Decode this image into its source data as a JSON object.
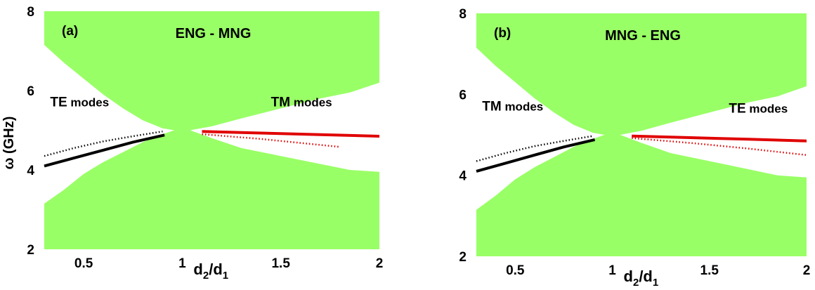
{
  "chart_data": [
    {
      "type": "area",
      "panel_label": "(a)",
      "title": "ENG - MNG",
      "xlabel": "",
      "ylabel": "ω (GHz)",
      "xlim": [
        0.3,
        2.0
      ],
      "ylim": [
        2,
        8
      ],
      "xticks": [
        "0.5",
        "1",
        "1.5",
        "2"
      ],
      "yticks": [
        "2",
        "4",
        "6",
        "8"
      ],
      "inline_x_label": {
        "main": "d",
        "sub1": "2",
        "slash": "/d",
        "sub2": "1"
      },
      "fill_color": "#99ff66",
      "gap_regions": [
        {
          "name": "left-gap",
          "upper": [
            [
              0.3,
              7.15
            ],
            [
              0.4,
              6.7
            ],
            [
              0.5,
              6.3
            ],
            [
              0.6,
              5.9
            ],
            [
              0.7,
              5.55
            ],
            [
              0.8,
              5.25
            ],
            [
              0.9,
              5.05
            ],
            [
              0.96,
              5.0
            ]
          ],
          "lower": [
            [
              0.3,
              3.15
            ],
            [
              0.4,
              3.5
            ],
            [
              0.5,
              3.9
            ],
            [
              0.6,
              4.2
            ],
            [
              0.7,
              4.45
            ],
            [
              0.8,
              4.7
            ],
            [
              0.9,
              4.9
            ],
            [
              0.96,
              5.0
            ]
          ]
        },
        {
          "name": "right-gap",
          "upper": [
            [
              1.04,
              5.0
            ],
            [
              1.15,
              5.1
            ],
            [
              1.3,
              5.3
            ],
            [
              1.5,
              5.55
            ],
            [
              1.7,
              5.8
            ],
            [
              1.85,
              5.95
            ],
            [
              2.0,
              6.2
            ]
          ],
          "lower": [
            [
              1.04,
              5.0
            ],
            [
              1.15,
              4.8
            ],
            [
              1.3,
              4.55
            ],
            [
              1.5,
              4.35
            ],
            [
              1.7,
              4.15
            ],
            [
              1.85,
              4.0
            ],
            [
              2.0,
              3.95
            ]
          ]
        }
      ],
      "region_labels": [
        {
          "strong": "TE",
          "rest": " modes",
          "x": 0.33,
          "y": 5.6
        },
        {
          "strong": "TM",
          "rest": " modes",
          "x": 1.45,
          "y": 5.6
        }
      ],
      "series": [
        {
          "color": "#000000",
          "style": "solid",
          "x": [
            0.3,
            0.45,
            0.6,
            0.75,
            0.91
          ],
          "y": [
            4.1,
            4.3,
            4.5,
            4.7,
            4.88
          ]
        },
        {
          "color": "#000000",
          "style": "dotted",
          "x": [
            0.3,
            0.45,
            0.6,
            0.75,
            0.9
          ],
          "y": [
            4.35,
            4.55,
            4.72,
            4.85,
            4.97
          ]
        },
        {
          "color": "#e00000",
          "style": "solid",
          "x": [
            1.1,
            1.4,
            1.7,
            2.0
          ],
          "y": [
            4.97,
            4.93,
            4.89,
            4.85
          ]
        },
        {
          "color": "#e00000",
          "style": "dotted",
          "x": [
            1.1,
            1.4,
            1.6,
            1.8
          ],
          "y": [
            4.9,
            4.78,
            4.68,
            4.58
          ]
        }
      ]
    },
    {
      "type": "area",
      "panel_label": "(b)",
      "title": "MNG - ENG",
      "xlabel": "",
      "ylabel": "",
      "xlim": [
        0.3,
        2.0
      ],
      "ylim": [
        2,
        8
      ],
      "xticks": [
        "0.5",
        "1",
        "1.5",
        "2"
      ],
      "yticks": [
        "2",
        "4",
        "6",
        "8"
      ],
      "inline_x_label": {
        "main": "d",
        "sub1": "2",
        "slash": "/d",
        "sub2": "1"
      },
      "fill_color": "#99ff66",
      "gap_regions": [
        {
          "name": "left-gap",
          "upper": [
            [
              0.3,
              7.15
            ],
            [
              0.4,
              6.7
            ],
            [
              0.5,
              6.3
            ],
            [
              0.6,
              5.9
            ],
            [
              0.7,
              5.55
            ],
            [
              0.8,
              5.25
            ],
            [
              0.9,
              5.05
            ],
            [
              0.96,
              5.0
            ]
          ],
          "lower": [
            [
              0.3,
              3.15
            ],
            [
              0.4,
              3.5
            ],
            [
              0.5,
              3.9
            ],
            [
              0.6,
              4.2
            ],
            [
              0.7,
              4.45
            ],
            [
              0.8,
              4.7
            ],
            [
              0.9,
              4.9
            ],
            [
              0.96,
              5.0
            ]
          ]
        },
        {
          "name": "right-gap",
          "upper": [
            [
              1.04,
              5.0
            ],
            [
              1.15,
              5.1
            ],
            [
              1.3,
              5.3
            ],
            [
              1.5,
              5.55
            ],
            [
              1.7,
              5.8
            ],
            [
              1.85,
              5.95
            ],
            [
              2.0,
              6.2
            ]
          ],
          "lower": [
            [
              1.04,
              5.0
            ],
            [
              1.15,
              4.8
            ],
            [
              1.3,
              4.55
            ],
            [
              1.5,
              4.35
            ],
            [
              1.7,
              4.15
            ],
            [
              1.85,
              4.0
            ],
            [
              2.0,
              3.95
            ]
          ]
        }
      ],
      "region_labels": [
        {
          "strong": "TM",
          "rest": " modes",
          "x": 0.33,
          "y": 5.6
        },
        {
          "strong": "TE",
          "rest": " modes",
          "x": 1.6,
          "y": 5.55
        }
      ],
      "series": [
        {
          "color": "#000000",
          "style": "solid",
          "x": [
            0.3,
            0.45,
            0.6,
            0.75,
            0.91
          ],
          "y": [
            4.1,
            4.3,
            4.5,
            4.7,
            4.88
          ]
        },
        {
          "color": "#000000",
          "style": "dotted",
          "x": [
            0.3,
            0.45,
            0.6,
            0.75,
            0.9
          ],
          "y": [
            4.35,
            4.55,
            4.72,
            4.85,
            4.97
          ]
        },
        {
          "color": "#e00000",
          "style": "solid",
          "x": [
            1.1,
            1.4,
            1.7,
            2.0
          ],
          "y": [
            4.97,
            4.93,
            4.89,
            4.85
          ]
        },
        {
          "color": "#e00000",
          "style": "dotted",
          "x": [
            1.1,
            1.4,
            1.7,
            2.0
          ],
          "y": [
            4.92,
            4.8,
            4.66,
            4.5
          ]
        }
      ]
    }
  ]
}
